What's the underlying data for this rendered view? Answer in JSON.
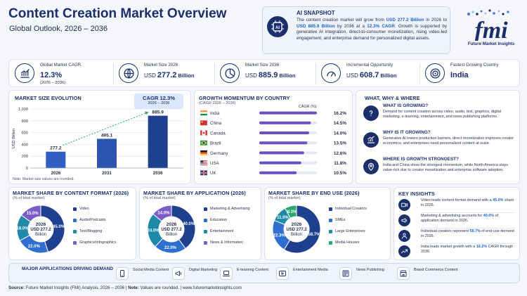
{
  "header": {
    "title": "Content Creation Market Overview",
    "subtitle": "Global Outlook, 2026 – 2036"
  },
  "snapshot": {
    "title": "AI SNAPSHOT",
    "icon": "ai-chip-icon",
    "text_parts": [
      {
        "t": "The content creation market will grow from ",
        "b": false
      },
      {
        "t": "USD 277.2 Billion",
        "b": true
      },
      {
        "t": " in 2026 to ",
        "b": false
      },
      {
        "t": "USD 885.9 Billion",
        "b": true
      },
      {
        "t": " by 2036 at a ",
        "b": false
      },
      {
        "t": "12.3% CAGR",
        "b": true
      },
      {
        "t": ". Growth is supported by generative AI integration, direct-to-consumer monetization, rising video-led engagement, and enterprise demand for personalized digital assets.",
        "b": false
      }
    ]
  },
  "logo": {
    "letters": "fmi",
    "caption": "Future Market Insights"
  },
  "kpis": [
    {
      "label": "Global Market CAGR",
      "value": "12.3%",
      "sub": "(2026 – 2036)",
      "prefix": "",
      "suffix": "",
      "icon": "growth-chart-icon"
    },
    {
      "label": "Market Size 2026",
      "value": "277.2",
      "sub": "",
      "prefix": "USD",
      "suffix": "Billion",
      "icon": "globe-icon"
    },
    {
      "label": "Market Size 2036",
      "value": "885.9",
      "sub": "",
      "prefix": "USD",
      "suffix": "Billion",
      "icon": "pie-icon"
    },
    {
      "label": "Incremental Opportunity",
      "value": "608.7",
      "sub": "",
      "prefix": "USD",
      "suffix": "Billion",
      "icon": "gauge-icon"
    },
    {
      "label": "Fastest Growing Country",
      "value": "India",
      "sub": "",
      "prefix": "",
      "suffix": "",
      "icon": "target-icon"
    }
  ],
  "market_size": {
    "title": "MARKET SIZE EVOLUTION",
    "cagr_label": "CAGR 12.3%",
    "cagr_period": "2026 – 2036",
    "note": "Note: Market size values are rounded.",
    "ylabel": "USD Billion",
    "yticks": [
      "0",
      "200",
      "400",
      "600",
      "800",
      "1,000"
    ]
  },
  "growth": {
    "title": "GROWTH MOMENTUM BY COUNTRY",
    "subtitle": "(CAGR 2026 – 2036)",
    "col_label": "CAGR (%)"
  },
  "why": {
    "title": "WHAT, WHY & WHERE",
    "items": [
      {
        "q": "WHAT IS GROWING?",
        "a": "Demand for content creation across video, audio, text, graphics, digital marketing, e-learning, entertainment, and news publishing platforms.",
        "icon": "question-icon"
      },
      {
        "q": "WHY IS IT GROWING?",
        "a": "Generative AI lowers production barriers, direct monetization improves creator economics, and enterprises need personalized content at scale.",
        "icon": "growth-icon"
      },
      {
        "q": "WHERE IS GROWTH STRONGEST?",
        "a": "India and China show the strongest momentum, while North America stays value-rich due to creator monetization and enterprise software adoption.",
        "icon": "location-pin-icon"
      }
    ]
  },
  "shares": [
    {
      "title": "MARKET SHARE BY CONTENT FORMAT (2026)",
      "sub": "(% of total market)",
      "center": [
        "2026",
        "USD 277.2",
        "Billion"
      ]
    },
    {
      "title": "MARKET SHARE BY APPLICATION (2026)",
      "sub": "(% of total market)",
      "center": [
        "2026",
        "USD 277.2",
        "Billion"
      ]
    },
    {
      "title": "MARKET SHARE BY END USE (2026)",
      "sub": "(% of total market)",
      "center": [
        "2026",
        "USD 277.2",
        "Billion"
      ]
    }
  ],
  "insights": {
    "title": "KEY INSIGHTS",
    "items": [
      {
        "parts": [
          {
            "t": "Video leads content format demand with a ",
            "b": false
          },
          {
            "t": "45.0%",
            "b": true
          },
          {
            "t": " share in 2026.",
            "b": false
          }
        ],
        "icon": "video-icon"
      },
      {
        "parts": [
          {
            "t": "Marketing & advertising accounts for ",
            "b": false
          },
          {
            "t": "40.0%",
            "b": true
          },
          {
            "t": " of application demand in 2026.",
            "b": false
          }
        ],
        "icon": "megaphone-icon"
      },
      {
        "parts": [
          {
            "t": "Individual creators represent ",
            "b": false
          },
          {
            "t": "58.7%",
            "b": true
          },
          {
            "t": " of end-use demand in 2026.",
            "b": false
          }
        ],
        "icon": "creator-icon"
      },
      {
        "parts": [
          {
            "t": "India leads market growth with a ",
            "b": false
          },
          {
            "t": "16.2%",
            "b": true
          },
          {
            "t": " CAGR through 2036.",
            "b": false
          }
        ],
        "icon": "trend-up-icon"
      }
    ]
  },
  "applications": {
    "title": "MAJOR APPLICATIONS DRIVING DEMAND",
    "items": [
      {
        "label": "Social Media Content",
        "icon": "smartphone-icon"
      },
      {
        "label": "Digital Marketing",
        "icon": "megaphone-icon"
      },
      {
        "label": "E-learning Content",
        "icon": "laptop-icon"
      },
      {
        "label": "Entertainment Media",
        "icon": "play-icon"
      },
      {
        "label": "News Publishing",
        "icon": "newspaper-icon"
      },
      {
        "label": "Brand Commerce Content",
        "icon": "storefront-icon"
      }
    ]
  },
  "footer": {
    "source_label": "Source:",
    "source": " Future Market Insights (FMI) Analysis, 2026 – 2036 | ",
    "note_label": "Note:",
    "note": " Values are rounded.  |  www.futuremarketinsights.com"
  },
  "colors": {
    "navy": "#1b2f6b",
    "blue": "#2f5fc4",
    "mid": "#3f79d8",
    "light": "#9bb9ef",
    "purple": "#7b5cc7",
    "green": "#2aa86b"
  },
  "chart_data": [
    {
      "type": "bar",
      "title": "MARKET SIZE EVOLUTION",
      "categories": [
        "2026",
        "2031",
        "2036"
      ],
      "values": [
        277.2,
        495.1,
        885.9
      ],
      "ylabel": "USD Billion",
      "ylim": [
        0,
        1000
      ],
      "grid": true
    },
    {
      "type": "bar",
      "title": "GROWTH MOMENTUM BY COUNTRY",
      "categories": [
        "India",
        "China",
        "Canada",
        "Brazil",
        "Germany",
        "USA",
        "UK"
      ],
      "values": [
        16.2,
        14.5,
        14.0,
        13.5,
        12.6,
        11.8,
        10.5
      ],
      "xlabel": "CAGR (%)"
    },
    {
      "type": "pie",
      "title": "MARKET SHARE BY CONTENT FORMAT (2026)",
      "categories": [
        "Video",
        "Audio/Podcasts",
        "Text/Blogging",
        "Graphics/Infographics"
      ],
      "values": [
        45.0,
        22.0,
        18.0,
        15.0
      ]
    },
    {
      "type": "pie",
      "title": "MARKET SHARE BY APPLICATION (2026)",
      "categories": [
        "Marketing & Advertising",
        "Education",
        "Entertainment",
        "News & Information"
      ],
      "values": [
        40.0,
        22.0,
        24.0,
        14.0
      ]
    },
    {
      "type": "pie",
      "title": "MARKET SHARE BY END USE (2026)",
      "categories": [
        "Individual Creators",
        "SMEs",
        "Large Enterprises",
        "Media Houses"
      ],
      "values": [
        58.7,
        22.3,
        11.0,
        8.0
      ]
    }
  ]
}
